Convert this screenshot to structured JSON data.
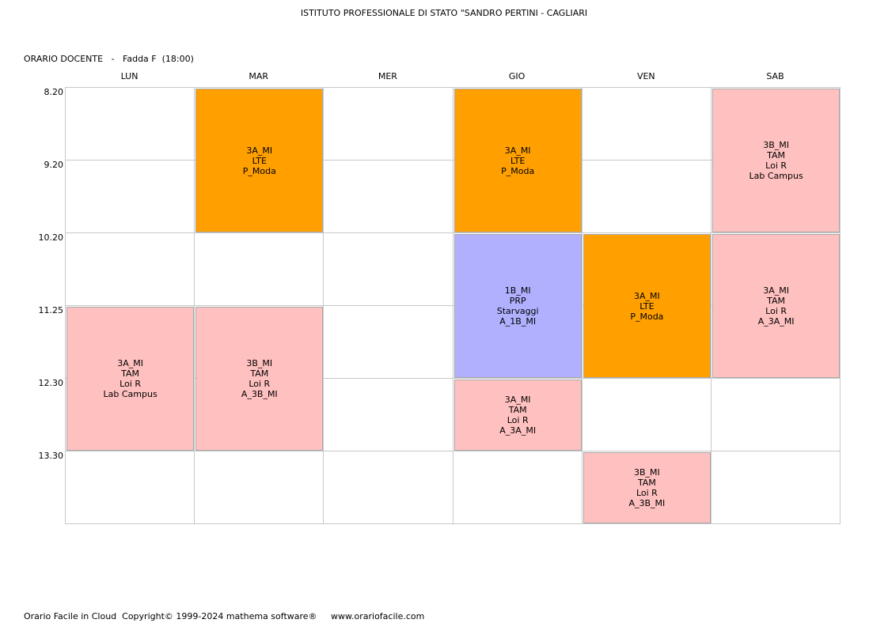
{
  "header": {
    "school": "ISTITUTO PROFESSIONALE DI STATO \"SANDRO PERTINI - CAGLIARI",
    "teacher_line": "ORARIO DOCENTE   -   Fadda F  (18:00)"
  },
  "days": [
    "LUN",
    "MAR",
    "MER",
    "GIO",
    "VEN",
    "SAB"
  ],
  "times": [
    "8.20",
    "9.20",
    "10.20",
    "11.25",
    "12.30",
    "13.30"
  ],
  "colors": {
    "orange": "#ffa000",
    "pink": "#ffc0c0",
    "lavender": "#b0b0ff"
  },
  "lessons": [
    {
      "day": 1,
      "start": 0,
      "span": 2,
      "color": "orange",
      "lines": [
        "3A_MI",
        "LTE",
        "P_Moda"
      ]
    },
    {
      "day": 3,
      "start": 0,
      "span": 2,
      "color": "orange",
      "lines": [
        "3A_MI",
        "LTE",
        "P_Moda"
      ]
    },
    {
      "day": 5,
      "start": 0,
      "span": 2,
      "color": "pink",
      "lines": [
        "3B_MI",
        "TAM",
        "Loi R",
        "Lab Campus"
      ]
    },
    {
      "day": 3,
      "start": 2,
      "span": 2,
      "color": "lavender",
      "lines": [
        "1B_MI",
        "PRP",
        "Starvaggi",
        "A_1B_MI"
      ]
    },
    {
      "day": 4,
      "start": 2,
      "span": 2,
      "color": "orange",
      "lines": [
        "3A_MI",
        "LTE",
        "P_Moda"
      ]
    },
    {
      "day": 5,
      "start": 2,
      "span": 2,
      "color": "pink",
      "lines": [
        "3A_MI",
        "TAM",
        "Loi R",
        "A_3A_MI"
      ]
    },
    {
      "day": 0,
      "start": 3,
      "span": 2,
      "color": "pink",
      "lines": [
        "3A_MI",
        "TAM",
        "Loi R",
        "Lab Campus"
      ]
    },
    {
      "day": 1,
      "start": 3,
      "span": 2,
      "color": "pink",
      "lines": [
        "3B_MI",
        "TAM",
        "Loi R",
        "A_3B_MI"
      ]
    },
    {
      "day": 3,
      "start": 4,
      "span": 1,
      "color": "pink",
      "lines": [
        "3A_MI",
        "TAM",
        "Loi R",
        "A_3A_MI"
      ]
    },
    {
      "day": 4,
      "start": 5,
      "span": 1,
      "color": "pink",
      "lines": [
        "3B_MI",
        "TAM",
        "Loi R",
        "A_3B_MI"
      ]
    }
  ],
  "footer": "Orario Facile in Cloud  Copyright© 1999-2024 mathema software®     www.orariofacile.com"
}
